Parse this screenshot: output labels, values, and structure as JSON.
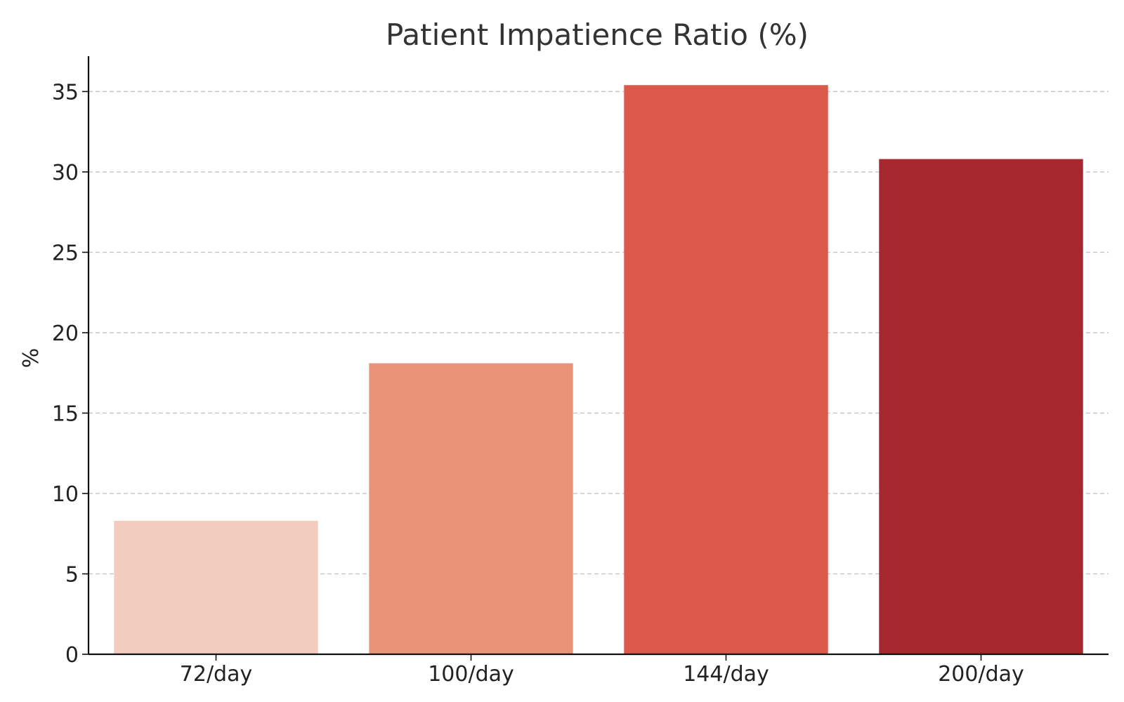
{
  "chart_data": {
    "type": "bar",
    "title": "Patient Impatience Ratio (%)",
    "xlabel": "",
    "ylabel": "%",
    "categories": [
      "72/day",
      "100/day",
      "144/day",
      "200/day"
    ],
    "values": [
      8.3,
      18.1,
      35.4,
      30.8
    ],
    "colors": [
      "#f2cdbf",
      "#e9937a",
      "#da594b",
      "#a6282e"
    ],
    "ylim": [
      0,
      37.2
    ],
    "yticks": [
      0,
      5,
      10,
      15,
      20,
      25,
      30,
      35
    ],
    "grid": true,
    "grid_axis": "y",
    "legend": "none"
  }
}
